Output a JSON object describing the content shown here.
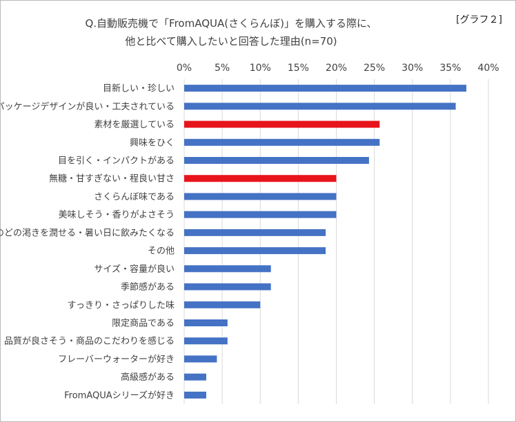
{
  "chart_data": {
    "type": "bar",
    "orientation": "horizontal",
    "title": "Q.自動販売機で「FromAQUA(さくらんぼ)」を購入する際に、",
    "subtitle": "他と比べて購入したいと回答した理由(n=70)",
    "label": "[グラフ２]",
    "x_ticks": [
      "0%",
      "5%",
      "10%",
      "15%",
      "20%",
      "25%",
      "30%",
      "35%",
      "40%"
    ],
    "xlim": [
      0,
      40
    ],
    "grid": true,
    "categories": [
      "目新しい・珍しい",
      "パッケージデザインが良い・工夫されている",
      "素材を厳選している",
      "興味をひく",
      "目を引く・インパクトがある",
      "無糖・甘すぎない・程良い甘さ",
      "さくらんぼ味である",
      "美味しそう・香りがよさそう",
      "のどの渇きを潤せる・暑い日に飲みたくなる",
      "その他",
      "サイズ・容量が良い",
      "季節感がある",
      "すっきり・さっぱりした味",
      "限定商品である",
      "品質が良さそう・商品のこだわりを感じる",
      "フレーバーウォーターが好き",
      "高級感がある",
      "FromAQUAシリーズが好き"
    ],
    "values": [
      37.1,
      35.7,
      25.7,
      25.7,
      24.3,
      20.0,
      20.0,
      20.0,
      18.6,
      18.6,
      11.4,
      11.4,
      10.0,
      5.7,
      5.7,
      4.3,
      2.9,
      2.9
    ],
    "highlight": [
      false,
      false,
      true,
      false,
      false,
      true,
      false,
      false,
      false,
      false,
      false,
      false,
      false,
      false,
      false,
      false,
      false,
      false
    ],
    "colors": {
      "default": "#4472C4",
      "highlight": "#E8141C",
      "grid": "#D9D9D9"
    }
  }
}
